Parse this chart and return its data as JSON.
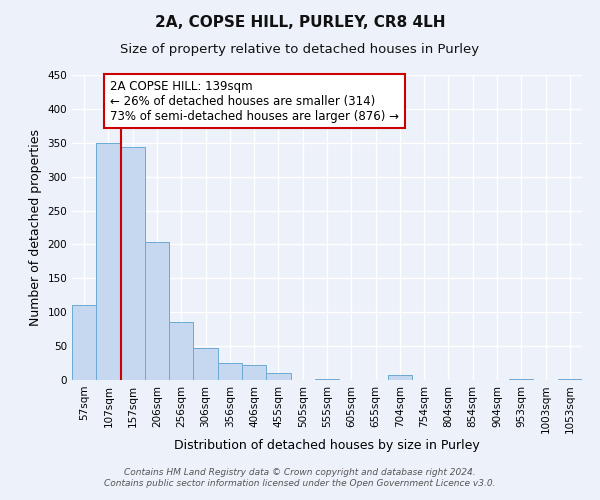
{
  "title": "2A, COPSE HILL, PURLEY, CR8 4LH",
  "subtitle": "Size of property relative to detached houses in Purley",
  "xlabel": "Distribution of detached houses by size in Purley",
  "ylabel": "Number of detached properties",
  "bin_labels": [
    "57sqm",
    "107sqm",
    "157sqm",
    "206sqm",
    "256sqm",
    "306sqm",
    "356sqm",
    "406sqm",
    "455sqm",
    "505sqm",
    "555sqm",
    "605sqm",
    "655sqm",
    "704sqm",
    "754sqm",
    "804sqm",
    "854sqm",
    "904sqm",
    "953sqm",
    "1003sqm",
    "1053sqm"
  ],
  "bar_heights": [
    110,
    350,
    344,
    203,
    85,
    47,
    25,
    22,
    11,
    0,
    2,
    0,
    0,
    8,
    0,
    0,
    0,
    0,
    2,
    0,
    2
  ],
  "bar_color": "#c5d8f0",
  "bar_edge_color": "#6aaad4",
  "vline_x_idx": 2,
  "vline_color": "#cc0000",
  "ylim": [
    0,
    450
  ],
  "yticks": [
    0,
    50,
    100,
    150,
    200,
    250,
    300,
    350,
    400,
    450
  ],
  "annotation_text": "2A COPSE HILL: 139sqm\n← 26% of detached houses are smaller (314)\n73% of semi-detached houses are larger (876) →",
  "annotation_box_color": "#ffffff",
  "annotation_box_edge": "#cc0000",
  "footer_line1": "Contains HM Land Registry data © Crown copyright and database right 2024.",
  "footer_line2": "Contains public sector information licensed under the Open Government Licence v3.0.",
  "bg_color": "#edf2fa",
  "grid_color": "#ffffff",
  "title_fontsize": 11,
  "subtitle_fontsize": 9.5,
  "axis_label_fontsize": 9,
  "tick_fontsize": 7.5,
  "footer_fontsize": 6.5,
  "annotation_fontsize": 8.5
}
